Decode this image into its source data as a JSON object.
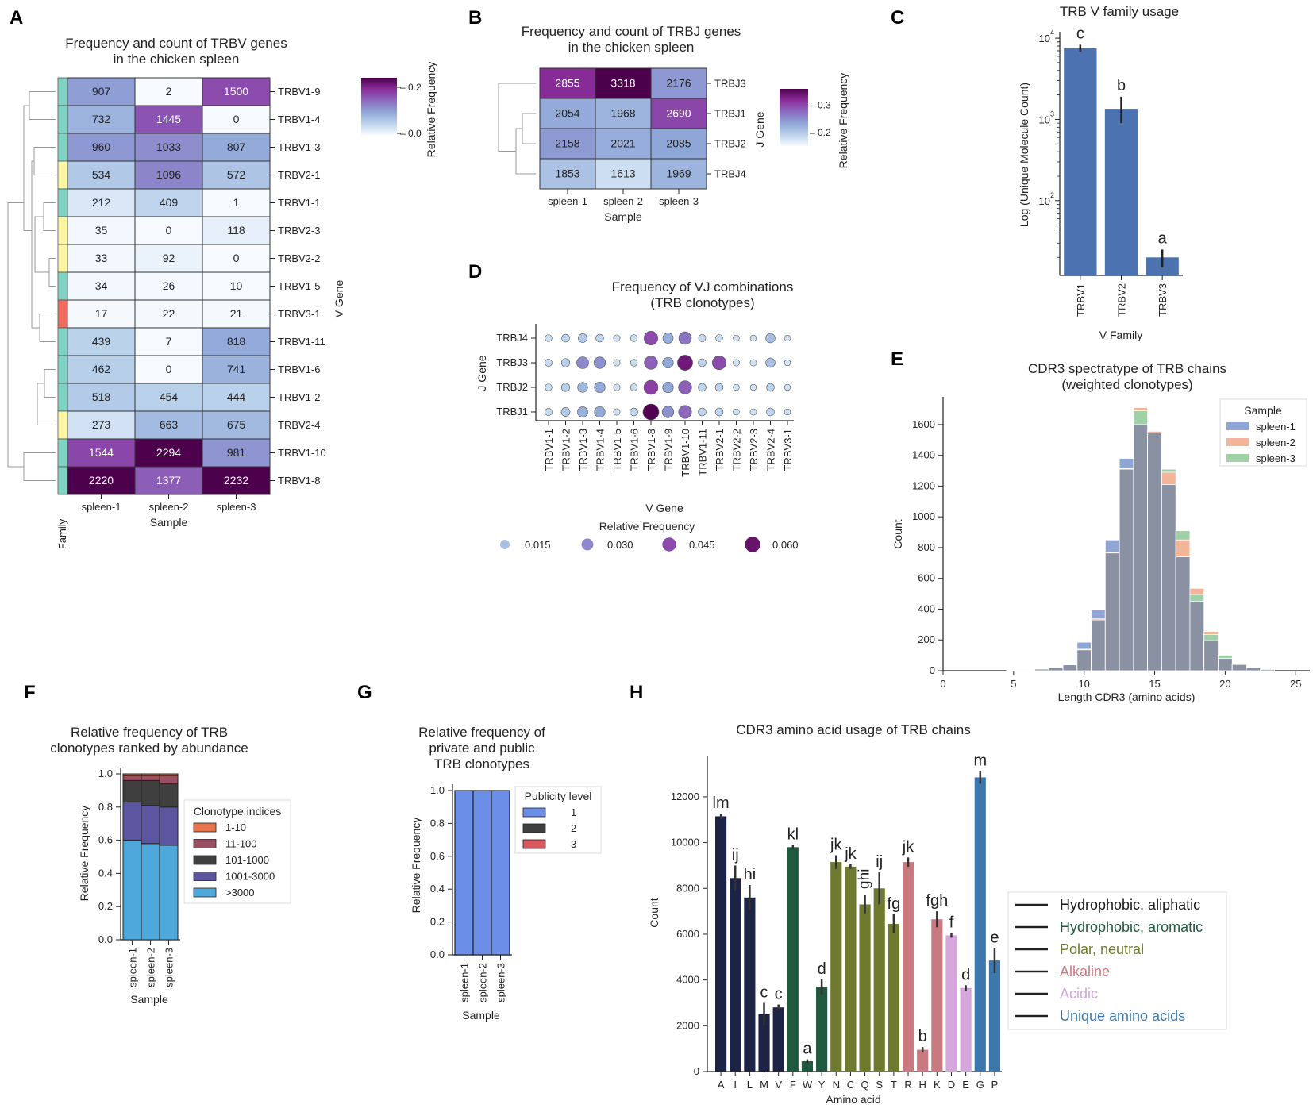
{
  "chart_data": [
    {
      "panel": "A",
      "type": "heatmap",
      "title": "Frequency and count of TRBV genes\nin the chicken spleen",
      "xlabel": "Sample",
      "ylabel": "V Gene",
      "family_label": "Family",
      "colorbar_label": "Relative Frequency",
      "colorbar_ticks": [
        "0.2",
        "0.0"
      ],
      "colorbar_range": [
        0.0,
        0.24
      ],
      "columns": [
        "spleen-1",
        "spleen-2",
        "spleen-3"
      ],
      "rows": [
        "TRBV1-9",
        "TRBV1-4",
        "TRBV1-3",
        "TRBV2-1",
        "TRBV1-1",
        "TRBV2-3",
        "TRBV2-2",
        "TRBV1-5",
        "TRBV3-1",
        "TRBV1-11",
        "TRBV1-6",
        "TRBV1-2",
        "TRBV2-4",
        "TRBV1-10",
        "TRBV1-8"
      ],
      "families": [
        "TRBV1",
        "TRBV1",
        "TRBV1",
        "TRBV2",
        "TRBV1",
        "TRBV2",
        "TRBV2",
        "TRBV1",
        "TRBV3",
        "TRBV1",
        "TRBV1",
        "TRBV1",
        "TRBV2",
        "TRBV1",
        "TRBV1"
      ],
      "family_colors": {
        "TRBV1": "#7fd3c3",
        "TRBV2": "#fdf6a3",
        "TRBV3": "#f26b60"
      },
      "values": [
        [
          907,
          2,
          1500
        ],
        [
          732,
          1445,
          0
        ],
        [
          960,
          1033,
          807
        ],
        [
          534,
          1096,
          572
        ],
        [
          212,
          409,
          1
        ],
        [
          35,
          0,
          118
        ],
        [
          33,
          92,
          0
        ],
        [
          34,
          26,
          10
        ],
        [
          17,
          22,
          21
        ],
        [
          439,
          7,
          818
        ],
        [
          462,
          0,
          741
        ],
        [
          518,
          454,
          444
        ],
        [
          273,
          663,
          675
        ],
        [
          1544,
          2294,
          981
        ],
        [
          2220,
          1377,
          2232
        ]
      ]
    },
    {
      "panel": "B",
      "type": "heatmap",
      "title": "Frequency and count of TRBJ genes\nin the chicken spleen",
      "xlabel": "Sample",
      "ylabel": "J Gene",
      "colorbar_label": "Relative Frequency",
      "colorbar_ticks": [
        "0.3",
        "0.2"
      ],
      "colorbar_range": [
        0.15,
        0.36
      ],
      "columns": [
        "spleen-1",
        "spleen-2",
        "spleen-3"
      ],
      "rows": [
        "TRBJ3",
        "TRBJ1",
        "TRBJ2",
        "TRBJ4"
      ],
      "values": [
        [
          2855,
          3318,
          2176
        ],
        [
          2054,
          1968,
          2690
        ],
        [
          2158,
          2021,
          2085
        ],
        [
          1853,
          1613,
          1969
        ]
      ]
    },
    {
      "panel": "C",
      "type": "bar",
      "title": "TRB V family usage",
      "xlabel": "V Family",
      "ylabel": "Log (Unique Molecule Count)",
      "yscale": "log",
      "ylim": [
        12,
        12000
      ],
      "yticks": [
        "10^2",
        "10^3",
        "10^4"
      ],
      "categories": [
        "TRBV1",
        "TRBV2",
        "TRBV3"
      ],
      "values": [
        7500,
        1350,
        20
      ],
      "error_low": [
        6800,
        900,
        15
      ],
      "error_high": [
        8300,
        1900,
        25
      ],
      "annotations": [
        "c",
        "b",
        "a"
      ],
      "color": "#4c72b0"
    },
    {
      "panel": "D",
      "type": "scatter",
      "title": "Frequency of VJ combinations\n(TRB clonotypes)",
      "xlabel": "V Gene",
      "ylabel": "J Gene",
      "x": [
        "TRBV1-1",
        "TRBV1-2",
        "TRBV1-3",
        "TRBV1-4",
        "TRBV1-5",
        "TRBV1-6",
        "TRBV1-8",
        "TRBV1-9",
        "TRBV1-10",
        "TRBV1-11",
        "TRBV2-1",
        "TRBV2-2",
        "TRBV2-3",
        "TRBV2-4",
        "TRBV3-1"
      ],
      "y": [
        "TRBJ4",
        "TRBJ3",
        "TRBJ2",
        "TRBJ1"
      ],
      "values": [
        [
          0.005,
          0.008,
          0.012,
          0.008,
          0.004,
          0.005,
          0.045,
          0.02,
          0.035,
          0.006,
          0.005,
          0.003,
          0.003,
          0.015,
          0.003
        ],
        [
          0.006,
          0.01,
          0.03,
          0.028,
          0.004,
          0.005,
          0.04,
          0.022,
          0.058,
          0.008,
          0.045,
          0.004,
          0.004,
          0.015,
          0.003
        ],
        [
          0.005,
          0.01,
          0.018,
          0.022,
          0.004,
          0.005,
          0.048,
          0.022,
          0.04,
          0.008,
          0.008,
          0.003,
          0.003,
          0.008,
          0.003
        ],
        [
          0.006,
          0.012,
          0.02,
          0.022,
          0.004,
          0.008,
          0.065,
          0.028,
          0.038,
          0.008,
          0.008,
          0.003,
          0.004,
          0.008,
          0.003
        ]
      ],
      "legend_title": "Relative Frequency",
      "legend_values": [
        0.015,
        0.03,
        0.045,
        0.06
      ],
      "legend_labels": [
        "0.015",
        "0.030",
        "0.045",
        "0.060"
      ]
    },
    {
      "panel": "E",
      "type": "bar",
      "subtype": "histogram",
      "title": "CDR3 spectratype of TRB chains\n(weighted clonotypes)",
      "xlabel": "Length CDR3 (amino acids)",
      "ylabel": "Count",
      "xlim": [
        0,
        26
      ],
      "ylim": [
        0,
        1780
      ],
      "xticks": [
        0,
        5,
        10,
        15,
        20,
        25
      ],
      "yticks": [
        0,
        200,
        400,
        600,
        800,
        1000,
        1200,
        1400,
        1600
      ],
      "bins": [
        5,
        6,
        7,
        8,
        9,
        10,
        11,
        12,
        13,
        14,
        15,
        16,
        17,
        18,
        19,
        20,
        21,
        22,
        23
      ],
      "legend_title": "Sample",
      "series": [
        {
          "name": "spleen-1",
          "color": "#8ea5d6",
          "values": [
            3,
            4,
            12,
            25,
            45,
            185,
            395,
            850,
            1380,
            1600,
            1545,
            1210,
            740,
            450,
            195,
            80,
            40,
            18,
            8
          ]
        },
        {
          "name": "spleen-2",
          "color": "#f3b59a",
          "values": [
            2,
            3,
            10,
            20,
            38,
            140,
            340,
            770,
            1310,
            1710,
            1555,
            1290,
            850,
            535,
            255,
            105,
            45,
            22,
            10
          ]
        },
        {
          "name": "spleen-3",
          "color": "#9fd0a7",
          "values": [
            2,
            3,
            10,
            22,
            40,
            135,
            330,
            765,
            1315,
            1690,
            1560,
            1310,
            910,
            495,
            235,
            100,
            44,
            20,
            9
          ]
        }
      ]
    },
    {
      "panel": "F",
      "type": "bar",
      "subtype": "stacked",
      "title": "Relative frequency of TRB\nclonotypes ranked by abundance",
      "xlabel": "Sample",
      "ylabel": "Relative Frequency",
      "ylim": [
        0,
        1.0
      ],
      "yticks": [
        "0.0",
        "0.2",
        "0.4",
        "0.6",
        "0.8",
        "1.0"
      ],
      "categories": [
        "spleen-1",
        "spleen-2",
        "spleen-3"
      ],
      "legend_title": "Clonotype indices",
      "series": [
        {
          "name": ">3000",
          "color": "#4fa8dc",
          "values": [
            0.6,
            0.58,
            0.57
          ]
        },
        {
          "name": "1001-3000",
          "color": "#5c56a0",
          "values": [
            0.23,
            0.23,
            0.23
          ]
        },
        {
          "name": "101-1000",
          "color": "#3f3f3f",
          "values": [
            0.13,
            0.15,
            0.14
          ]
        },
        {
          "name": "11-100",
          "color": "#9b4f63",
          "values": [
            0.03,
            0.03,
            0.05
          ]
        },
        {
          "name": "1-10",
          "color": "#e8734c",
          "values": [
            0.01,
            0.01,
            0.01
          ]
        }
      ],
      "legend_order": [
        "1-10",
        "11-100",
        "101-1000",
        "1001-3000",
        ">3000"
      ]
    },
    {
      "panel": "G",
      "type": "bar",
      "subtype": "stacked",
      "title": "Relative frequency of\nprivate and public\nTRB clonotypes",
      "xlabel": "Sample",
      "ylabel": "Relative Frequency",
      "ylim": [
        0,
        1.0
      ],
      "yticks": [
        "0.0",
        "0.2",
        "0.4",
        "0.6",
        "0.8",
        "1.0"
      ],
      "categories": [
        "spleen-1",
        "spleen-2",
        "spleen-3"
      ],
      "legend_title": "Publicity level",
      "series": [
        {
          "name": "1",
          "color": "#6b8ee8",
          "values": [
            1.0,
            1.0,
            1.0
          ]
        },
        {
          "name": "2",
          "color": "#3f3f3f",
          "values": [
            0.0,
            0.0,
            0.0
          ]
        },
        {
          "name": "3",
          "color": "#d9575e",
          "values": [
            0.0,
            0.0,
            0.0
          ]
        }
      ]
    },
    {
      "panel": "H",
      "type": "bar",
      "title": "CDR3 amino acid usage of TRB chains",
      "xlabel": "Amino acid",
      "ylabel": "Count",
      "ylim": [
        0,
        13800
      ],
      "yticks": [
        0,
        2000,
        4000,
        6000,
        8000,
        10000,
        12000
      ],
      "categories": [
        "A",
        "I",
        "L",
        "M",
        "V",
        "F",
        "W",
        "Y",
        "N",
        "C",
        "Q",
        "S",
        "T",
        "R",
        "H",
        "K",
        "D",
        "E",
        "G",
        "P"
      ],
      "values": [
        11150,
        8450,
        7600,
        2500,
        2800,
        9800,
        450,
        3700,
        9150,
        8950,
        7300,
        8000,
        6450,
        9150,
        950,
        6650,
        5950,
        3650,
        12850,
        4850
      ],
      "errors": [
        120,
        550,
        550,
        500,
        130,
        100,
        80,
        330,
        300,
        100,
        400,
        700,
        420,
        200,
        120,
        350,
        100,
        120,
        280,
        550
      ],
      "annotations": [
        "lm",
        "ij",
        "hi",
        "c",
        "c",
        "kl",
        "a",
        "d",
        "jk",
        "jk",
        "ghi",
        "ij",
        "fg",
        "jk",
        "b",
        "fgh",
        "f",
        "d",
        "m",
        "e"
      ],
      "groups": [
        "Hydrophobic, aliphatic",
        "Hydrophobic, aliphatic",
        "Hydrophobic, aliphatic",
        "Hydrophobic, aliphatic",
        "Hydrophobic, aliphatic",
        "Hydrophobic, aromatic",
        "Hydrophobic, aromatic",
        "Hydrophobic, aromatic",
        "Polar, neutral",
        "Polar, neutral",
        "Polar, neutral",
        "Polar, neutral",
        "Polar, neutral",
        "Alkaline",
        "Alkaline",
        "Alkaline",
        "Acidic",
        "Acidic",
        "Unique amino acids",
        "Unique amino acids"
      ],
      "legend": [
        {
          "name": "Hydrophobic, aliphatic",
          "color": "#1c2344",
          "text_color": "#1a1a1a"
        },
        {
          "name": "Hydrophobic, aromatic",
          "color": "#1f5a3e",
          "text_color": "#1f5a3e"
        },
        {
          "name": "Polar, neutral",
          "color": "#6f7a2e",
          "text_color": "#6f7a2e"
        },
        {
          "name": "Alkaline",
          "color": "#c97a80",
          "text_color": "#c97a80"
        },
        {
          "name": "Acidic",
          "color": "#d4a6dc",
          "text_color": "#d4a6dc"
        },
        {
          "name": "Unique amino acids",
          "color": "#3c78ac",
          "text_color": "#3c78ac"
        }
      ]
    }
  ]
}
